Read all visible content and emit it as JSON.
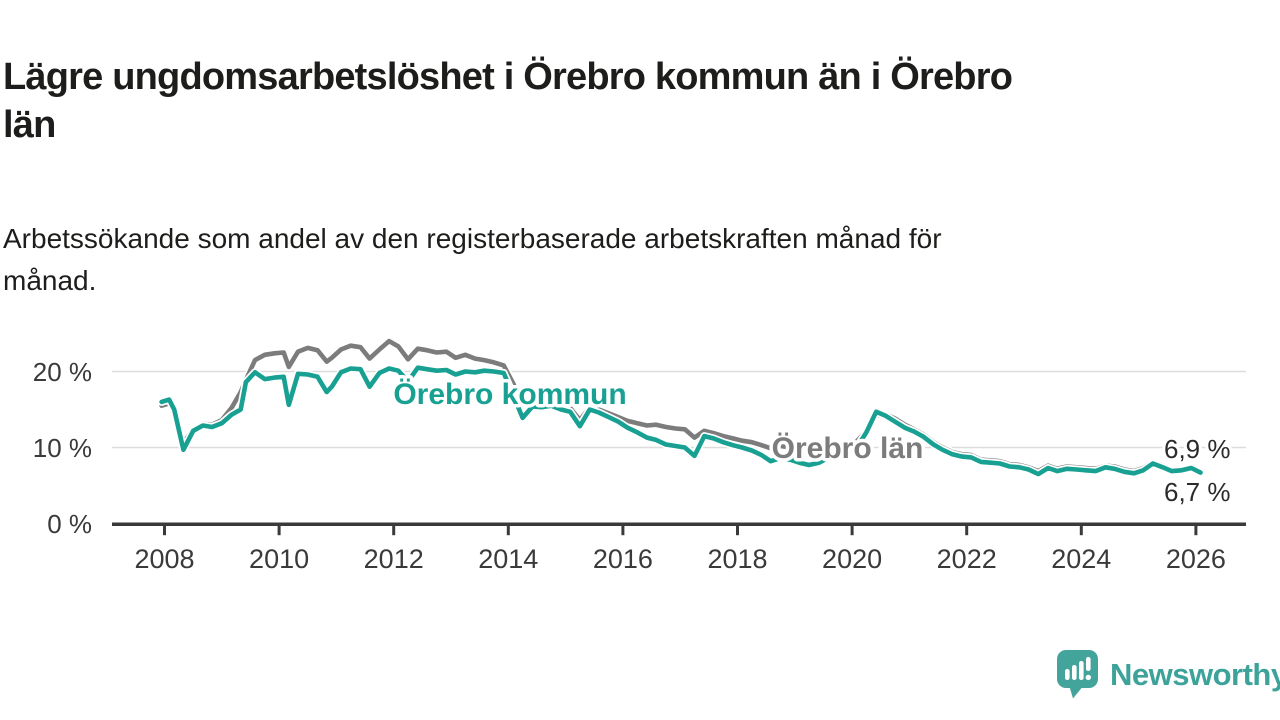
{
  "title": "Lägre ungdomsarbetslöshet i Örebro kommun än i Örebro\nlän",
  "subtitle": "Arbetssökande som andel av den registerbaserade arbetskraften månad för\nmånad.",
  "branding": {
    "logo_text": "Newsworthy",
    "logo_color": "#3da39a"
  },
  "colors": {
    "kommun_line": "#18a192",
    "lan_line": "#7c7c7c",
    "axis": "#3a3a3a",
    "grid": "#dcdcdc",
    "text": "#1d1d1b",
    "end_label": "#2b2b2b"
  },
  "chart_data": {
    "type": "line",
    "title": "Lägre ungdomsarbetslöshet i Örebro kommun än i Örebro län",
    "xlabel": "",
    "ylabel": "",
    "unit": "%",
    "ylim": [
      0,
      25.5
    ],
    "xlim": [
      2007.08,
      2026.89
    ],
    "grid": "horizontal",
    "legend_position": "inline-labels",
    "y_ticks": [
      {
        "value": 0,
        "label": "0 %"
      },
      {
        "value": 10,
        "label": "10 %"
      },
      {
        "value": 20,
        "label": "20 %"
      }
    ],
    "x_ticks": [
      2008,
      2010,
      2012,
      2014,
      2016,
      2018,
      2020,
      2022,
      2024,
      2026
    ],
    "series": [
      {
        "name": "Örebro län",
        "color": "#7c7c7c",
        "end_label": "6,9 %",
        "points": [
          [
            2007.95,
            15.5
          ],
          [
            2008.08,
            15.8
          ],
          [
            2008.17,
            14.8
          ],
          [
            2008.33,
            10.6
          ],
          [
            2008.5,
            12.4
          ],
          [
            2008.67,
            13.1
          ],
          [
            2008.83,
            13.0
          ],
          [
            2009.0,
            13.6
          ],
          [
            2009.17,
            15.2
          ],
          [
            2009.33,
            17.3
          ],
          [
            2009.42,
            18.9
          ],
          [
            2009.58,
            21.5
          ],
          [
            2009.75,
            22.2
          ],
          [
            2009.92,
            22.4
          ],
          [
            2010.08,
            22.5
          ],
          [
            2010.17,
            20.6
          ],
          [
            2010.33,
            22.6
          ],
          [
            2010.5,
            23.1
          ],
          [
            2010.67,
            22.8
          ],
          [
            2010.83,
            21.3
          ],
          [
            2010.92,
            21.8
          ],
          [
            2011.08,
            22.9
          ],
          [
            2011.25,
            23.4
          ],
          [
            2011.42,
            23.2
          ],
          [
            2011.58,
            21.7
          ],
          [
            2011.75,
            22.9
          ],
          [
            2011.92,
            24.0
          ],
          [
            2012.08,
            23.3
          ],
          [
            2012.25,
            21.6
          ],
          [
            2012.42,
            23.0
          ],
          [
            2012.58,
            22.8
          ],
          [
            2012.75,
            22.5
          ],
          [
            2012.92,
            22.6
          ],
          [
            2013.08,
            21.8
          ],
          [
            2013.25,
            22.2
          ],
          [
            2013.42,
            21.7
          ],
          [
            2013.58,
            21.5
          ],
          [
            2013.75,
            21.2
          ],
          [
            2013.92,
            20.8
          ],
          [
            2014.08,
            18.5
          ],
          [
            2014.25,
            15.8
          ],
          [
            2014.42,
            16.0
          ],
          [
            2014.58,
            15.9
          ],
          [
            2014.75,
            16.1
          ],
          [
            2014.92,
            15.6
          ],
          [
            2015.08,
            15.2
          ],
          [
            2015.25,
            13.6
          ],
          [
            2015.42,
            15.3
          ],
          [
            2015.58,
            15.0
          ],
          [
            2015.75,
            14.5
          ],
          [
            2015.92,
            14.0
          ],
          [
            2016.08,
            13.5
          ],
          [
            2016.25,
            13.2
          ],
          [
            2016.42,
            12.9
          ],
          [
            2016.58,
            13.0
          ],
          [
            2016.75,
            12.7
          ],
          [
            2016.92,
            12.5
          ],
          [
            2017.08,
            12.4
          ],
          [
            2017.25,
            11.3
          ],
          [
            2017.42,
            12.2
          ],
          [
            2017.58,
            11.9
          ],
          [
            2017.75,
            11.5
          ],
          [
            2017.92,
            11.2
          ],
          [
            2018.08,
            10.9
          ],
          [
            2018.25,
            10.7
          ],
          [
            2018.42,
            10.3
          ],
          [
            2018.58,
            9.9
          ],
          [
            2018.75,
            10.2
          ],
          [
            2018.92,
            10.0
          ],
          [
            2019.08,
            9.6
          ],
          [
            2019.25,
            9.3
          ],
          [
            2019.42,
            9.6
          ],
          [
            2019.58,
            9.9
          ],
          [
            2019.75,
            10.1
          ],
          [
            2019.92,
            10.4
          ],
          [
            2020.08,
            10.8
          ],
          [
            2020.25,
            12.2
          ],
          [
            2020.42,
            14.2
          ],
          [
            2020.58,
            14.4
          ],
          [
            2020.75,
            13.8
          ],
          [
            2020.92,
            13.0
          ],
          [
            2021.08,
            12.4
          ],
          [
            2021.25,
            11.7
          ],
          [
            2021.42,
            10.7
          ],
          [
            2021.58,
            10.0
          ],
          [
            2021.75,
            9.4
          ],
          [
            2021.92,
            9.1
          ],
          [
            2022.08,
            9.0
          ],
          [
            2022.25,
            8.4
          ],
          [
            2022.42,
            8.3
          ],
          [
            2022.58,
            8.2
          ],
          [
            2022.75,
            7.8
          ],
          [
            2022.92,
            7.7
          ],
          [
            2023.08,
            7.4
          ],
          [
            2023.25,
            6.9
          ],
          [
            2023.42,
            7.6
          ],
          [
            2023.58,
            7.2
          ],
          [
            2023.75,
            7.5
          ],
          [
            2023.92,
            7.4
          ],
          [
            2024.08,
            7.3
          ],
          [
            2024.25,
            7.2
          ],
          [
            2024.42,
            7.6
          ],
          [
            2024.58,
            7.5
          ],
          [
            2024.75,
            7.1
          ],
          [
            2024.92,
            6.9
          ],
          [
            2025.08,
            7.3
          ],
          [
            2025.25,
            8.1
          ],
          [
            2025.42,
            7.6
          ],
          [
            2025.58,
            7.1
          ],
          [
            2025.75,
            7.2
          ],
          [
            2025.92,
            7.4
          ],
          [
            2026.08,
            6.9
          ]
        ]
      },
      {
        "name": "Örebro kommun",
        "color": "#18a192",
        "end_label": "6,7 %",
        "points": [
          [
            2007.95,
            16.0
          ],
          [
            2008.08,
            16.3
          ],
          [
            2008.17,
            15.0
          ],
          [
            2008.33,
            9.7
          ],
          [
            2008.5,
            12.2
          ],
          [
            2008.67,
            12.9
          ],
          [
            2008.83,
            12.7
          ],
          [
            2009.0,
            13.2
          ],
          [
            2009.17,
            14.3
          ],
          [
            2009.33,
            15.0
          ],
          [
            2009.42,
            18.6
          ],
          [
            2009.58,
            19.9
          ],
          [
            2009.75,
            19.0
          ],
          [
            2009.92,
            19.2
          ],
          [
            2010.08,
            19.3
          ],
          [
            2010.17,
            15.6
          ],
          [
            2010.33,
            19.7
          ],
          [
            2010.5,
            19.6
          ],
          [
            2010.67,
            19.3
          ],
          [
            2010.83,
            17.3
          ],
          [
            2010.92,
            18.0
          ],
          [
            2011.08,
            19.9
          ],
          [
            2011.25,
            20.4
          ],
          [
            2011.42,
            20.3
          ],
          [
            2011.58,
            18.0
          ],
          [
            2011.75,
            19.8
          ],
          [
            2011.92,
            20.4
          ],
          [
            2012.08,
            20.1
          ],
          [
            2012.25,
            18.7
          ],
          [
            2012.42,
            20.5
          ],
          [
            2012.58,
            20.3
          ],
          [
            2012.75,
            20.1
          ],
          [
            2012.92,
            20.2
          ],
          [
            2013.08,
            19.6
          ],
          [
            2013.25,
            20.0
          ],
          [
            2013.42,
            19.9
          ],
          [
            2013.58,
            20.1
          ],
          [
            2013.75,
            20.0
          ],
          [
            2013.92,
            19.8
          ],
          [
            2014.08,
            17.0
          ],
          [
            2014.25,
            13.9
          ],
          [
            2014.42,
            15.4
          ],
          [
            2014.58,
            15.3
          ],
          [
            2014.75,
            15.5
          ],
          [
            2014.92,
            15.0
          ],
          [
            2015.08,
            14.7
          ],
          [
            2015.25,
            12.8
          ],
          [
            2015.42,
            15.0
          ],
          [
            2015.58,
            14.6
          ],
          [
            2015.75,
            14.0
          ],
          [
            2015.92,
            13.4
          ],
          [
            2016.08,
            12.6
          ],
          [
            2016.25,
            12.0
          ],
          [
            2016.42,
            11.3
          ],
          [
            2016.58,
            11.0
          ],
          [
            2016.75,
            10.4
          ],
          [
            2016.92,
            10.2
          ],
          [
            2017.08,
            10.0
          ],
          [
            2017.25,
            8.9
          ],
          [
            2017.42,
            11.5
          ],
          [
            2017.58,
            11.2
          ],
          [
            2017.75,
            10.7
          ],
          [
            2017.92,
            10.3
          ],
          [
            2018.08,
            10.0
          ],
          [
            2018.25,
            9.6
          ],
          [
            2018.42,
            9.0
          ],
          [
            2018.58,
            8.2
          ],
          [
            2018.75,
            8.6
          ],
          [
            2018.92,
            8.4
          ],
          [
            2019.08,
            8.0
          ],
          [
            2019.25,
            7.7
          ],
          [
            2019.42,
            8.0
          ],
          [
            2019.58,
            8.6
          ],
          [
            2019.75,
            9.0
          ],
          [
            2019.92,
            9.4
          ],
          [
            2020.08,
            10.0
          ],
          [
            2020.25,
            12.0
          ],
          [
            2020.42,
            14.7
          ],
          [
            2020.58,
            14.2
          ],
          [
            2020.75,
            13.4
          ],
          [
            2020.92,
            12.6
          ],
          [
            2021.08,
            12.1
          ],
          [
            2021.25,
            11.4
          ],
          [
            2021.42,
            10.4
          ],
          [
            2021.58,
            9.7
          ],
          [
            2021.75,
            9.1
          ],
          [
            2021.92,
            8.8
          ],
          [
            2022.08,
            8.7
          ],
          [
            2022.25,
            8.1
          ],
          [
            2022.42,
            8.0
          ],
          [
            2022.58,
            7.9
          ],
          [
            2022.75,
            7.5
          ],
          [
            2022.92,
            7.4
          ],
          [
            2023.08,
            7.1
          ],
          [
            2023.25,
            6.5
          ],
          [
            2023.42,
            7.3
          ],
          [
            2023.58,
            6.9
          ],
          [
            2023.75,
            7.2
          ],
          [
            2023.92,
            7.1
          ],
          [
            2024.08,
            7.0
          ],
          [
            2024.25,
            6.9
          ],
          [
            2024.42,
            7.4
          ],
          [
            2024.58,
            7.2
          ],
          [
            2024.75,
            6.8
          ],
          [
            2024.92,
            6.6
          ],
          [
            2025.08,
            7.0
          ],
          [
            2025.25,
            7.9
          ],
          [
            2025.42,
            7.4
          ],
          [
            2025.58,
            6.9
          ],
          [
            2025.75,
            7.0
          ],
          [
            2025.92,
            7.3
          ],
          [
            2026.08,
            6.7
          ]
        ]
      }
    ],
    "inline_labels": [
      {
        "text": "Örebro kommun",
        "color": "#18a192",
        "anchor_year": 2014.03,
        "anchor_value": 15.7
      },
      {
        "text": "Örebro län",
        "color": "#7c7c7c",
        "anchor_year": 2019.92,
        "anchor_value": 8.65
      }
    ],
    "end_labels": [
      {
        "text": "6,9 %",
        "series": "Örebro län"
      },
      {
        "text": "6,7 %",
        "series": "Örebro kommun"
      }
    ]
  }
}
